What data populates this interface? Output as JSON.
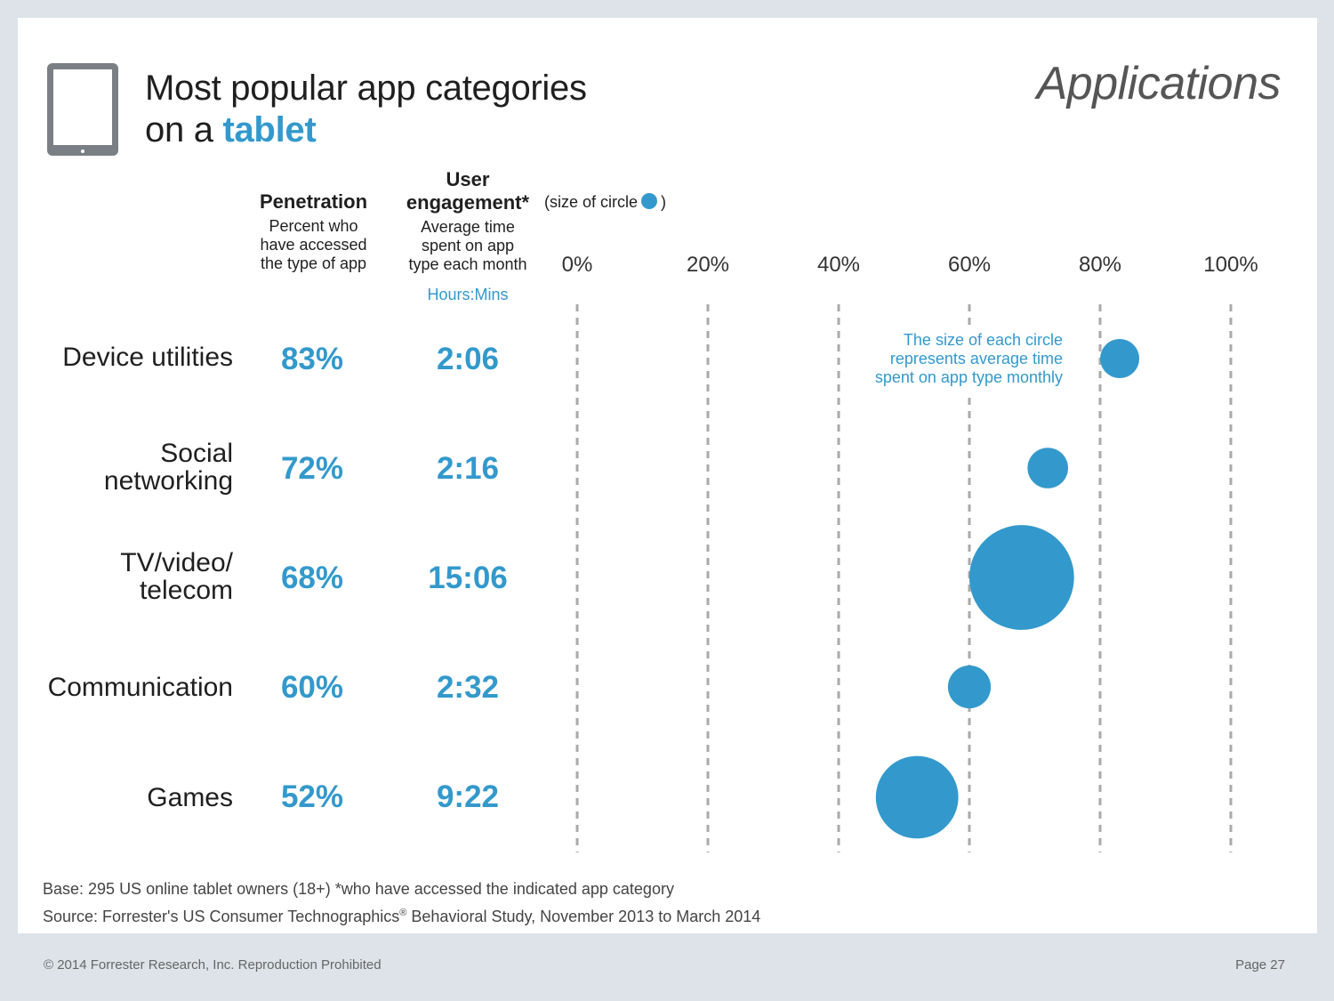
{
  "header": {
    "title_line1": "Most popular app categories",
    "title_line2_prefix": "on a ",
    "title_line2_accent": "tablet",
    "section": "Applications"
  },
  "columns": {
    "penetration": {
      "heading": "Penetration",
      "description_lines": [
        "Percent who",
        "have accessed",
        "the type of app"
      ]
    },
    "engagement": {
      "heading_line1": "User",
      "heading_line2": "engagement*",
      "size_note_prefix": "(size of circle",
      "size_note_suffix": ")",
      "description_lines": [
        "Average time",
        "spent on app",
        "type each month"
      ],
      "units": "Hours:Mins"
    }
  },
  "chart_data": {
    "type": "scatter",
    "title": "Most popular app categories on a tablet",
    "xlabel": "Penetration",
    "x_ticks": [
      "0%",
      "20%",
      "40%",
      "60%",
      "80%",
      "100%"
    ],
    "xlim": [
      0,
      100
    ],
    "grid": true,
    "size_encoding": "average time spent on app type monthly (hours)",
    "series": [
      {
        "category_lines": [
          "Device utilities"
        ],
        "penetration_label": "83%",
        "x": 83,
        "engagement_label": "2:06",
        "hours": 2.1
      },
      {
        "category_lines": [
          "Social",
          "networking"
        ],
        "penetration_label": "72%",
        "x": 72,
        "engagement_label": "2:16",
        "hours": 2.267
      },
      {
        "category_lines": [
          "TV/video/",
          "telecom"
        ],
        "penetration_label": "68%",
        "x": 68,
        "engagement_label": "15:06",
        "hours": 15.1
      },
      {
        "category_lines": [
          "Communication"
        ],
        "penetration_label": "60%",
        "x": 60,
        "engagement_label": "2:32",
        "hours": 2.533
      },
      {
        "category_lines": [
          "Games"
        ],
        "penetration_label": "52%",
        "x": 52,
        "engagement_label": "9:22",
        "hours": 9.367
      }
    ],
    "annotation_lines": [
      "The size of each circle",
      "represents average time",
      "spent on app type monthly"
    ]
  },
  "footer": {
    "base": "Base: 295 US online tablet owners (18+) *who have accessed the indicated app category",
    "source_prefix": "Source: Forrester's US Consumer Technographics",
    "source_reg": "®",
    "source_suffix": " Behavioral Study, November 2013 to March 2014",
    "copyright": "© 2014 Forrester Research, Inc. Reproduction Prohibited",
    "page": "Page 27"
  },
  "colors": {
    "accent": "#3399cc",
    "grid": "#aaaaaa",
    "background": "#dde3e8"
  }
}
